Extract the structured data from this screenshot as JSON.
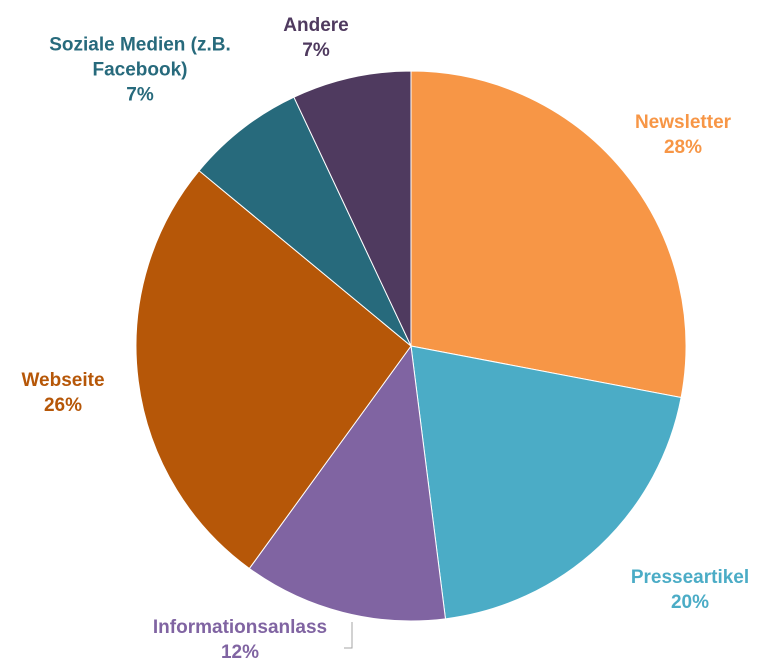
{
  "chart_data": {
    "type": "pie",
    "categories": [
      "Newsletter",
      "Presseartikel",
      "Informationsanlass",
      "Webseite",
      "Soziale Medien (z.B. Facebook)",
      "Andere"
    ],
    "values": [
      28,
      20,
      12,
      26,
      7,
      7
    ],
    "value_labels": [
      "28%",
      "20%",
      "12%",
      "26%",
      "7%",
      "7%"
    ],
    "colors": [
      "#f79646",
      "#4bacc6",
      "#8064a2",
      "#b65708",
      "#276a7c",
      "#4f3a5f"
    ]
  }
}
